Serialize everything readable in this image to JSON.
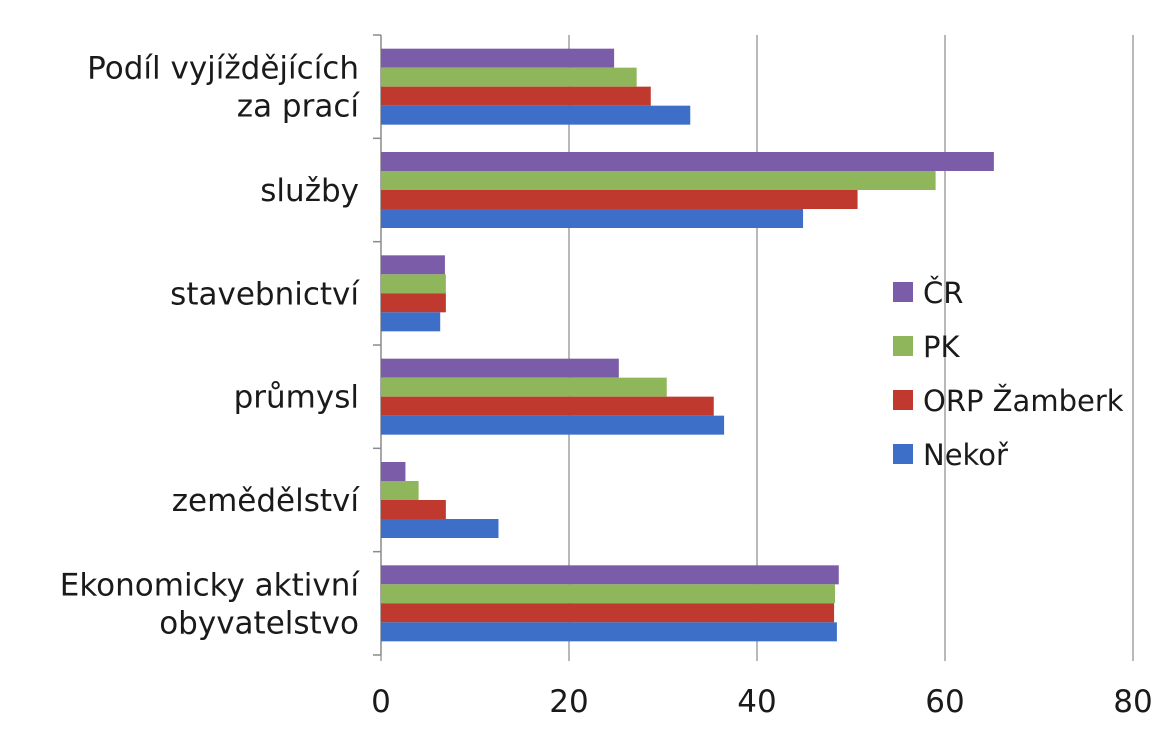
{
  "chart_data": {
    "type": "bar",
    "orientation": "horizontal",
    "title": "",
    "xlabel": "",
    "ylabel": "",
    "xlim": [
      0,
      80
    ],
    "x_ticks": [
      0,
      20,
      40,
      60,
      80
    ],
    "x_tick_labels": [
      "0",
      "20",
      "40",
      "60",
      "80"
    ],
    "grid": "vertical",
    "legend_position": "right",
    "categories": [
      [
        "Podíl vyjíždějících",
        "za prací"
      ],
      [
        "služby"
      ],
      [
        "stavebnictví"
      ],
      [
        "průmysl"
      ],
      [
        "zemědělství"
      ],
      [
        "Ekonomicky aktivní",
        "obyvatelstvo"
      ]
    ],
    "series": [
      {
        "name": "ČR",
        "color": "#7b5ca8",
        "values": [
          24.8,
          65.2,
          6.8,
          25.3,
          2.6,
          48.7
        ]
      },
      {
        "name": "PK",
        "color": "#8fb65b",
        "values": [
          27.2,
          59.0,
          6.9,
          30.4,
          4.0,
          48.3
        ]
      },
      {
        "name": "ORP Žamberk",
        "color": "#c0392f",
        "values": [
          28.7,
          50.7,
          6.9,
          35.4,
          6.9,
          48.2
        ]
      },
      {
        "name": "Nekoř",
        "color": "#3d6fc9",
        "values": [
          32.9,
          44.9,
          6.3,
          36.5,
          12.5,
          48.5
        ]
      }
    ],
    "legend_order": [
      0,
      1,
      2,
      3
    ]
  }
}
